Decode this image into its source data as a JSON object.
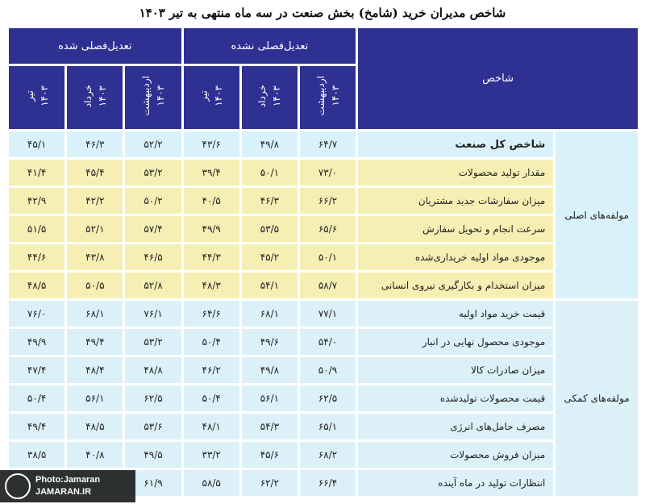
{
  "title": "شاخص مدیران خرید (شامخ) بخش صنعت در سه ماه منتهی به تیر ۱۴۰۳",
  "header": {
    "label": "شاخص",
    "groups": [
      {
        "title": "تعدیل‌فصلی نشده",
        "columns": [
          {
            "month": "اردیبهشت",
            "year": "۱۴۰۳"
          },
          {
            "month": "خرداد",
            "year": "۱۴۰۳"
          },
          {
            "month": "تیر",
            "year": "۱۴۰۳"
          }
        ]
      },
      {
        "title": "تعدیل‌فصلی شده",
        "columns": [
          {
            "month": "اردیبهشت",
            "year": "۱۴۰۳"
          },
          {
            "month": "خرداد",
            "year": "۱۴۰۳"
          },
          {
            "month": "تیر",
            "year": "۱۴۰۳"
          }
        ]
      }
    ]
  },
  "sections": [
    {
      "name": "مولفه‌های اصلی",
      "rows": [
        {
          "label": "شاخص کل صنعت",
          "values": [
            "۶۴/۷",
            "۴۹/۸",
            "۴۳/۶",
            "۵۲/۲",
            "۴۶/۳",
            "۴۵/۱"
          ]
        },
        {
          "label": "مقدار تولید محصولات",
          "values": [
            "۷۳/۰",
            "۵۰/۱",
            "۳۹/۴",
            "۵۳/۲",
            "۴۵/۴",
            "۴۱/۴"
          ]
        },
        {
          "label": "میزان سفارشات جدید مشتریان",
          "values": [
            "۶۶/۲",
            "۴۶/۳",
            "۴۰/۵",
            "۵۰/۲",
            "۴۲/۲",
            "۴۲/۹"
          ]
        },
        {
          "label": "سرعت انجام و تحویل سفارش",
          "values": [
            "۶۵/۶",
            "۵۳/۵",
            "۴۹/۹",
            "۵۷/۴",
            "۵۲/۱",
            "۵۱/۵"
          ]
        },
        {
          "label": "موجودی مواد اولیه خریداری‌شده",
          "values": [
            "۵۰/۱",
            "۴۵/۲",
            "۴۴/۳",
            "۴۶/۵",
            "۴۳/۸",
            "۴۴/۶"
          ]
        },
        {
          "label": "میزان استخدام و بکارگیری نیروی انسانی",
          "values": [
            "۵۸/۷",
            "۵۴/۱",
            "۴۸/۳",
            "۵۲/۸",
            "۵۰/۵",
            "۴۸/۵"
          ]
        }
      ]
    },
    {
      "name": "مولفه‌های کمکی",
      "rows": [
        {
          "label": "قیمت خرید مواد اولیه",
          "values": [
            "۷۷/۱",
            "۶۸/۱",
            "۶۴/۶",
            "۷۶/۱",
            "۶۸/۱",
            "۷۶/۰"
          ]
        },
        {
          "label": "موجودی محصول نهایی در انبار",
          "values": [
            "۵۴/۰",
            "۴۹/۶",
            "۵۰/۴",
            "۵۳/۲",
            "۴۹/۴",
            "۴۹/۹"
          ]
        },
        {
          "label": "میزان صادرات کالا",
          "values": [
            "۵۰/۹",
            "۴۹/۸",
            "۴۶/۲",
            "۴۸/۸",
            "۴۸/۴",
            "۴۷/۴"
          ]
        },
        {
          "label": "قیمت محصولات تولیدشده",
          "values": [
            "۶۲/۵",
            "۵۶/۱",
            "۵۰/۴",
            "۶۲/۵",
            "۵۶/۱",
            "۵۰/۴"
          ]
        },
        {
          "label": "مصرف حامل‌های انرژی",
          "values": [
            "۶۵/۱",
            "۵۴/۳",
            "۴۸/۱",
            "۵۳/۶",
            "۴۸/۵",
            "۴۹/۴"
          ]
        },
        {
          "label": "میزان فروش محصولات",
          "values": [
            "۶۸/۲",
            "۴۵/۶",
            "۳۳/۲",
            "۴۹/۵",
            "۴۰/۸",
            "۳۸/۵"
          ]
        },
        {
          "label": "انتظارات تولید در ماه آینده",
          "values": [
            "۶۶/۴",
            "۶۲/۲",
            "۵۸/۵",
            "۶۱/۹"
          ]
        }
      ]
    }
  ],
  "watermark": {
    "credit": "Photo:Jamaran",
    "site": "JAMARAN.IR"
  }
}
